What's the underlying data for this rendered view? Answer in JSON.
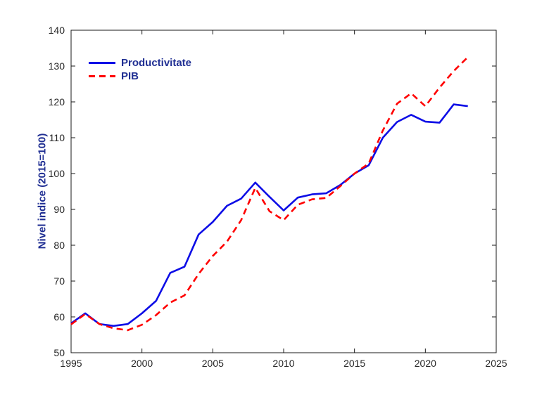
{
  "figure": {
    "background": "#ffffff",
    "axis_color": "#1a1a1a",
    "tick_label_color": "#262626",
    "label_color": "#202f93"
  },
  "chart_data": {
    "type": "line",
    "title": "",
    "xlabel": "",
    "ylabel": "Nivel indice (2015=100)",
    "xlim": [
      1995,
      2025
    ],
    "ylim": [
      50,
      140
    ],
    "x_ticks": [
      1995,
      2000,
      2005,
      2010,
      2015,
      2020,
      2025
    ],
    "y_ticks": [
      50,
      60,
      70,
      80,
      90,
      100,
      110,
      120,
      130,
      140
    ],
    "grid": false,
    "legend_position": "upper-left",
    "legend_box": false,
    "x": [
      1995,
      1996,
      1997,
      1998,
      1999,
      2000,
      2001,
      2002,
      2003,
      2004,
      2005,
      2006,
      2007,
      2008,
      2009,
      2010,
      2011,
      2012,
      2013,
      2014,
      2015,
      2016,
      2017,
      2018,
      2019,
      2020,
      2021,
      2022,
      2023
    ],
    "series": [
      {
        "name": "Productivitate",
        "color": "#0d0de6",
        "style": "solid",
        "values": [
          58.2,
          61.0,
          58.0,
          57.5,
          58.0,
          61.0,
          64.5,
          72.3,
          74.0,
          83.0,
          86.5,
          91.0,
          93.0,
          97.5,
          93.5,
          89.7,
          93.3,
          94.2,
          94.5,
          96.8,
          100.0,
          102.3,
          110.0,
          114.4,
          116.4,
          114.5,
          114.2,
          119.3,
          118.8
        ]
      },
      {
        "name": "PIB",
        "color": "#ff0000",
        "style": "dashed",
        "values": [
          57.9,
          60.8,
          58.0,
          56.8,
          56.3,
          57.8,
          60.5,
          64.0,
          66.0,
          72.0,
          77.0,
          81.0,
          87.0,
          96.0,
          89.5,
          87.0,
          91.3,
          92.8,
          93.2,
          96.5,
          100.0,
          102.8,
          112.0,
          119.5,
          122.4,
          118.8,
          124.0,
          128.6,
          132.5
        ]
      }
    ]
  }
}
